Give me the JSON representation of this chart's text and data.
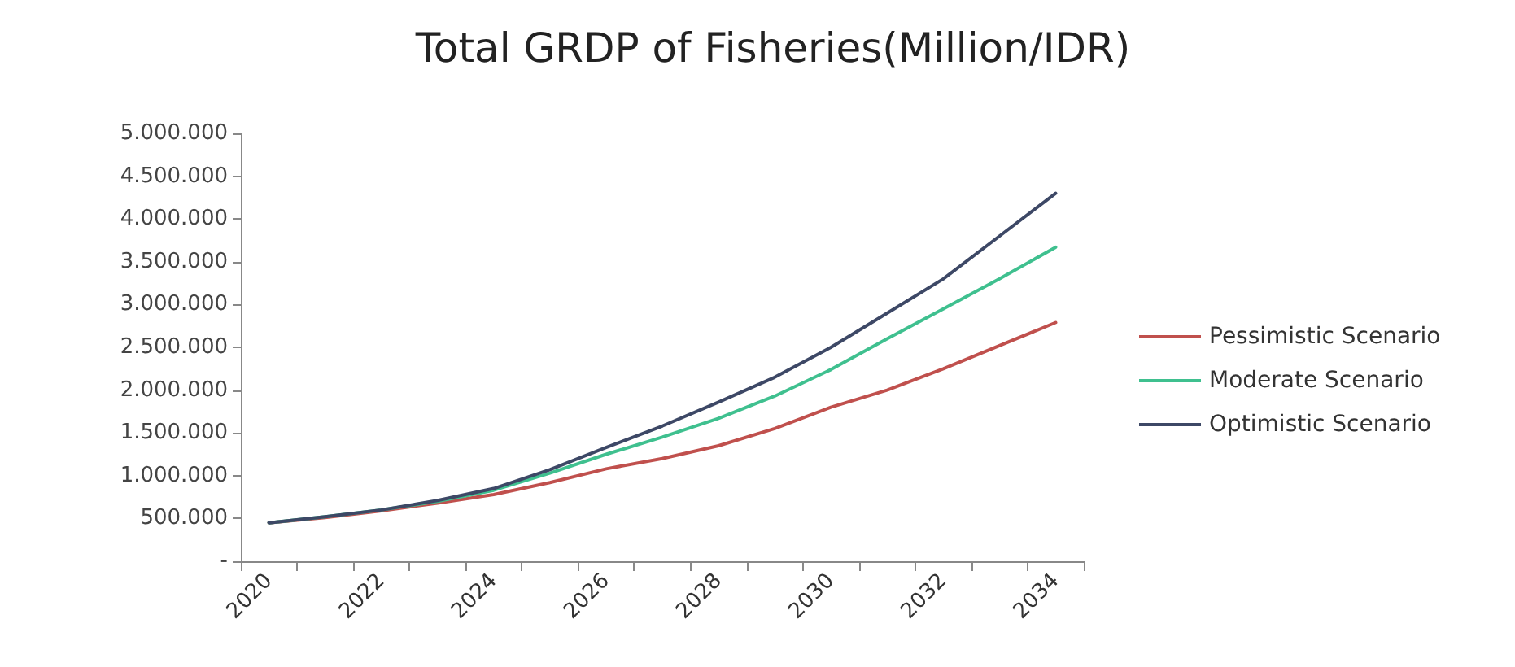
{
  "chart_data": {
    "type": "line",
    "title": "Total GRDP of Fisheries(Million/IDR)",
    "categories": [
      "2020",
      null,
      "2022",
      null,
      "2024",
      null,
      "2026",
      null,
      "2028",
      null,
      "2030",
      null,
      "2032",
      null,
      "2034"
    ],
    "series": [
      {
        "name": "Pessimistic Scenario",
        "color": "#c0504d",
        "values": [
          450000,
          510000,
          590000,
          680000,
          780000,
          920000,
          1080000,
          1200000,
          1350000,
          1550000,
          1800000,
          2000000,
          2250000,
          2520000,
          2790000
        ]
      },
      {
        "name": "Moderate Scenario",
        "color": "#3fc08f",
        "values": [
          450000,
          520000,
          600000,
          700000,
          830000,
          1030000,
          1250000,
          1450000,
          1670000,
          1930000,
          2240000,
          2600000,
          2950000,
          3300000,
          3670000
        ]
      },
      {
        "name": "Optimistic Scenario",
        "color": "#3d4866",
        "values": [
          450000,
          520000,
          600000,
          710000,
          850000,
          1070000,
          1330000,
          1580000,
          1860000,
          2150000,
          2500000,
          2900000,
          3300000,
          3800000,
          4300000
        ]
      }
    ],
    "ylim": [
      0,
      5000000
    ],
    "yticks": [
      {
        "value": 0,
        "label": "-"
      },
      {
        "value": 500000,
        "label": "500.000"
      },
      {
        "value": 1000000,
        "label": "1.000.000"
      },
      {
        "value": 1500000,
        "label": "1.500.000"
      },
      {
        "value": 2000000,
        "label": "2.000.000"
      },
      {
        "value": 2500000,
        "label": "2.500.000"
      },
      {
        "value": 3000000,
        "label": "3.000.000"
      },
      {
        "value": 3500000,
        "label": "3.500.000"
      },
      {
        "value": 4000000,
        "label": "4.000.000"
      },
      {
        "value": 4500000,
        "label": "4.500.000"
      },
      {
        "value": 5000000,
        "label": "5.000.000"
      }
    ],
    "grid": false,
    "legend": "right",
    "marker": "none",
    "line_style": "solid"
  }
}
